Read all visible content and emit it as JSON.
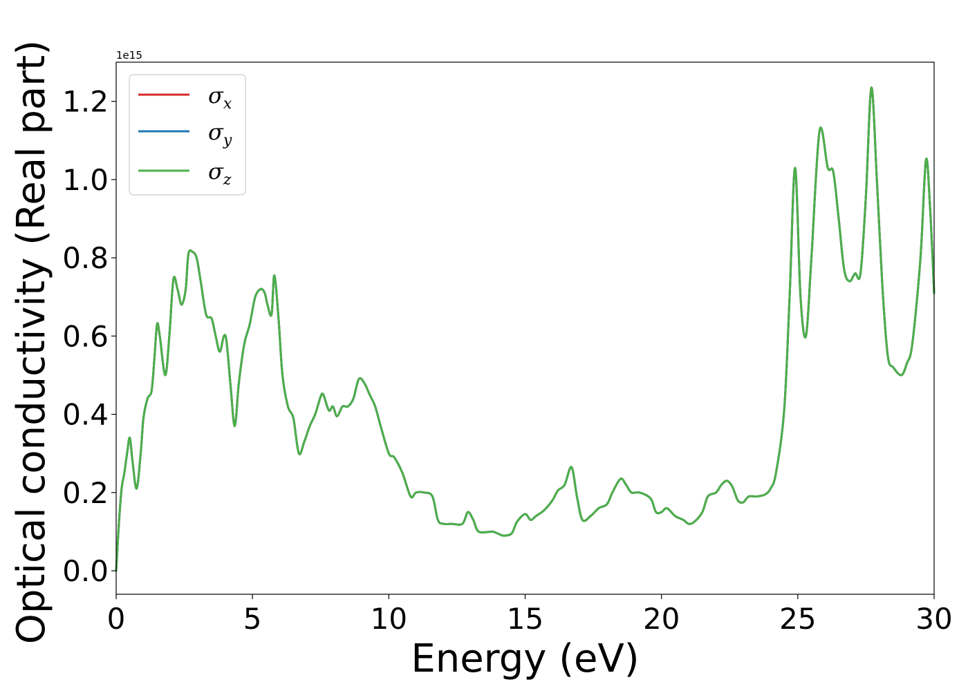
{
  "chart_data": {
    "type": "line",
    "xlabel": "Energy (eV)",
    "ylabel": "Optical conductivity (Real part)",
    "y_offset_label": "1e15",
    "xlim": [
      0,
      30
    ],
    "ylim": [
      -0.06,
      1.3
    ],
    "x_ticks": [
      0,
      5,
      10,
      15,
      20,
      25,
      30
    ],
    "x_tick_labels": [
      "0",
      "5",
      "10",
      "15",
      "20",
      "25",
      "30"
    ],
    "y_ticks": [
      0.0,
      0.2,
      0.4,
      0.6,
      0.8,
      1.0,
      1.2
    ],
    "y_tick_labels": [
      "0.0",
      "0.2",
      "0.4",
      "0.6",
      "0.8",
      "1.0",
      "1.2"
    ],
    "grid": false,
    "legend_position": "upper-left",
    "x": [
      0,
      0.1,
      0.2,
      0.3,
      0.4,
      0.5,
      0.6,
      0.75,
      0.9,
      1.0,
      1.15,
      1.3,
      1.4,
      1.5,
      1.6,
      1.8,
      1.95,
      2.1,
      2.25,
      2.4,
      2.55,
      2.65,
      2.8,
      2.95,
      3.1,
      3.3,
      3.5,
      3.65,
      3.8,
      3.95,
      4.05,
      4.2,
      4.35,
      4.5,
      4.7,
      4.9,
      5.1,
      5.3,
      5.45,
      5.55,
      5.7,
      5.8,
      5.95,
      6.1,
      6.3,
      6.5,
      6.7,
      6.9,
      7.1,
      7.3,
      7.5,
      7.6,
      7.8,
      7.95,
      8.1,
      8.3,
      8.5,
      8.7,
      8.9,
      9.1,
      9.3,
      9.5,
      9.7,
      10.0,
      10.2,
      10.5,
      10.8,
      11.0,
      11.3,
      11.6,
      11.8,
      12.0,
      12.3,
      12.7,
      12.9,
      13.1,
      13.3,
      13.8,
      14.0,
      14.2,
      14.5,
      14.7,
      15.0,
      15.2,
      15.4,
      15.7,
      16.0,
      16.2,
      16.45,
      16.7,
      16.9,
      17.1,
      17.4,
      17.7,
      18.0,
      18.2,
      18.5,
      18.7,
      18.9,
      19.2,
      19.6,
      19.8,
      20.0,
      20.2,
      20.5,
      20.8,
      21.0,
      21.2,
      21.5,
      21.7,
      22.0,
      22.2,
      22.4,
      22.6,
      22.8,
      23.0,
      23.2,
      23.5,
      23.8,
      24.0,
      24.2,
      24.5,
      24.7,
      24.9,
      25.1,
      25.3,
      25.5,
      25.8,
      26.1,
      26.3,
      26.5,
      26.7,
      26.9,
      27.1,
      27.3,
      27.5,
      27.7,
      27.9,
      28.1,
      28.3,
      28.5,
      28.8,
      29.0,
      29.2,
      29.5,
      29.7,
      29.85,
      30.0
    ],
    "series": [
      {
        "name": "σx",
        "color": "#d62728",
        "values": [
          0.0,
          0.12,
          0.21,
          0.25,
          0.3,
          0.34,
          0.28,
          0.21,
          0.3,
          0.39,
          0.44,
          0.46,
          0.54,
          0.63,
          0.6,
          0.5,
          0.6,
          0.745,
          0.72,
          0.68,
          0.72,
          0.81,
          0.815,
          0.8,
          0.74,
          0.655,
          0.645,
          0.6,
          0.56,
          0.6,
          0.585,
          0.47,
          0.37,
          0.48,
          0.58,
          0.63,
          0.7,
          0.72,
          0.71,
          0.68,
          0.655,
          0.755,
          0.65,
          0.5,
          0.42,
          0.39,
          0.3,
          0.33,
          0.37,
          0.4,
          0.445,
          0.45,
          0.41,
          0.42,
          0.395,
          0.42,
          0.42,
          0.44,
          0.49,
          0.48,
          0.45,
          0.42,
          0.37,
          0.3,
          0.29,
          0.25,
          0.19,
          0.2,
          0.2,
          0.19,
          0.13,
          0.12,
          0.12,
          0.12,
          0.15,
          0.13,
          0.1,
          0.1,
          0.095,
          0.09,
          0.095,
          0.125,
          0.145,
          0.13,
          0.14,
          0.155,
          0.18,
          0.205,
          0.22,
          0.265,
          0.19,
          0.13,
          0.14,
          0.16,
          0.17,
          0.2,
          0.235,
          0.22,
          0.2,
          0.2,
          0.185,
          0.15,
          0.15,
          0.16,
          0.14,
          0.13,
          0.12,
          0.125,
          0.15,
          0.19,
          0.2,
          0.22,
          0.23,
          0.215,
          0.18,
          0.175,
          0.19,
          0.19,
          0.195,
          0.21,
          0.25,
          0.41,
          0.7,
          1.03,
          0.7,
          0.6,
          0.8,
          1.125,
          1.03,
          1.02,
          0.9,
          0.77,
          0.74,
          0.76,
          0.76,
          0.96,
          1.235,
          1.0,
          0.73,
          0.55,
          0.52,
          0.5,
          0.53,
          0.58,
          0.8,
          1.05,
          0.93,
          0.71
        ]
      },
      {
        "name": "σy",
        "color": "#1f77b4",
        "values": [
          0.0,
          0.12,
          0.21,
          0.25,
          0.3,
          0.34,
          0.28,
          0.21,
          0.3,
          0.39,
          0.44,
          0.46,
          0.54,
          0.63,
          0.6,
          0.5,
          0.6,
          0.745,
          0.72,
          0.68,
          0.72,
          0.81,
          0.815,
          0.8,
          0.74,
          0.655,
          0.645,
          0.6,
          0.56,
          0.6,
          0.585,
          0.47,
          0.37,
          0.48,
          0.58,
          0.63,
          0.7,
          0.72,
          0.71,
          0.68,
          0.655,
          0.755,
          0.65,
          0.5,
          0.42,
          0.39,
          0.3,
          0.33,
          0.37,
          0.4,
          0.445,
          0.45,
          0.41,
          0.42,
          0.395,
          0.42,
          0.42,
          0.44,
          0.49,
          0.48,
          0.45,
          0.42,
          0.37,
          0.3,
          0.29,
          0.25,
          0.19,
          0.2,
          0.2,
          0.19,
          0.13,
          0.12,
          0.12,
          0.12,
          0.15,
          0.13,
          0.1,
          0.1,
          0.095,
          0.09,
          0.095,
          0.125,
          0.145,
          0.13,
          0.14,
          0.155,
          0.18,
          0.205,
          0.22,
          0.265,
          0.19,
          0.13,
          0.14,
          0.16,
          0.17,
          0.2,
          0.235,
          0.22,
          0.2,
          0.2,
          0.185,
          0.15,
          0.15,
          0.16,
          0.14,
          0.13,
          0.12,
          0.125,
          0.15,
          0.19,
          0.2,
          0.22,
          0.23,
          0.215,
          0.18,
          0.175,
          0.19,
          0.19,
          0.195,
          0.21,
          0.25,
          0.41,
          0.7,
          1.03,
          0.7,
          0.6,
          0.8,
          1.125,
          1.03,
          1.02,
          0.9,
          0.77,
          0.74,
          0.76,
          0.76,
          0.96,
          1.235,
          1.0,
          0.73,
          0.55,
          0.52,
          0.5,
          0.53,
          0.58,
          0.8,
          1.05,
          0.93,
          0.71
        ]
      },
      {
        "name": "σz",
        "color": "#4daf4a",
        "values": [
          0.0,
          0.12,
          0.21,
          0.25,
          0.3,
          0.34,
          0.28,
          0.21,
          0.3,
          0.39,
          0.44,
          0.46,
          0.54,
          0.63,
          0.6,
          0.5,
          0.6,
          0.745,
          0.72,
          0.68,
          0.72,
          0.81,
          0.815,
          0.8,
          0.74,
          0.655,
          0.645,
          0.6,
          0.56,
          0.6,
          0.585,
          0.47,
          0.37,
          0.48,
          0.58,
          0.63,
          0.7,
          0.72,
          0.71,
          0.68,
          0.655,
          0.755,
          0.65,
          0.5,
          0.42,
          0.39,
          0.3,
          0.33,
          0.37,
          0.4,
          0.445,
          0.45,
          0.41,
          0.42,
          0.395,
          0.42,
          0.42,
          0.44,
          0.49,
          0.48,
          0.45,
          0.42,
          0.37,
          0.3,
          0.29,
          0.25,
          0.19,
          0.2,
          0.2,
          0.19,
          0.13,
          0.12,
          0.12,
          0.12,
          0.15,
          0.13,
          0.1,
          0.1,
          0.095,
          0.09,
          0.095,
          0.125,
          0.145,
          0.13,
          0.14,
          0.155,
          0.18,
          0.205,
          0.22,
          0.265,
          0.19,
          0.13,
          0.14,
          0.16,
          0.17,
          0.2,
          0.235,
          0.22,
          0.2,
          0.2,
          0.185,
          0.15,
          0.15,
          0.16,
          0.14,
          0.13,
          0.12,
          0.125,
          0.15,
          0.19,
          0.2,
          0.22,
          0.23,
          0.215,
          0.18,
          0.175,
          0.19,
          0.19,
          0.195,
          0.21,
          0.25,
          0.41,
          0.7,
          1.03,
          0.7,
          0.6,
          0.8,
          1.125,
          1.03,
          1.02,
          0.9,
          0.77,
          0.74,
          0.76,
          0.76,
          0.96,
          1.235,
          1.0,
          0.73,
          0.55,
          0.52,
          0.5,
          0.53,
          0.58,
          0.8,
          1.05,
          0.93,
          0.71
        ]
      }
    ],
    "legend": [
      {
        "symbol": "σ",
        "sub": "x",
        "color": "#d62728"
      },
      {
        "symbol": "σ",
        "sub": "y",
        "color": "#1f77b4"
      },
      {
        "symbol": "σ",
        "sub": "z",
        "color": "#4daf4a"
      }
    ]
  }
}
